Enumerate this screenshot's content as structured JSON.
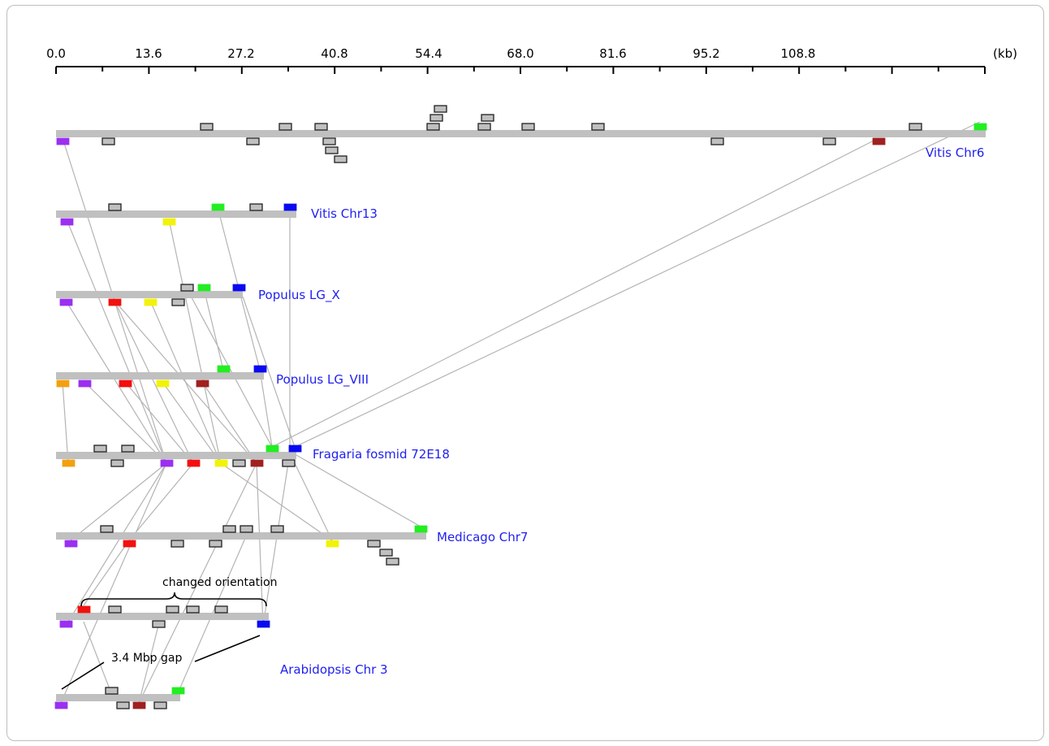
{
  "axis": {
    "unit": "(kb)",
    "ticks": [
      "0.0",
      "13.6",
      "27.2",
      "40.8",
      "54.4",
      "68.0",
      "81.6",
      "95.2",
      "108.8"
    ]
  },
  "chromosomes": [
    {
      "id": "vitis6",
      "label": "Vitis Chr6"
    },
    {
      "id": "vitis13",
      "label": "Vitis Chr13"
    },
    {
      "id": "populusX",
      "label": "Populus LG_X"
    },
    {
      "id": "populusVIII",
      "label": "Populus LG_VIII"
    },
    {
      "id": "fragaria",
      "label": "Fragaria fosmid 72E18"
    },
    {
      "id": "medicago",
      "label": "Medicago Chr7"
    },
    {
      "id": "arabidopsis",
      "label": "Arabidopsis Chr 3"
    }
  ],
  "annotations": {
    "changed_orientation": "changed orientation",
    "gap": "3.4 Mbp gap"
  },
  "colors": {
    "track": "#c0c0c0",
    "gene_default": "#c0c0c0",
    "purple": "#9b30f0",
    "green": "#22ee22",
    "blue": "#0a0af0",
    "red": "#f21010",
    "yellow": "#f2f20a",
    "brown": "#a02020",
    "orange": "#f2a010",
    "link": "#b4b4b4",
    "label": "#1f1ff0"
  }
}
